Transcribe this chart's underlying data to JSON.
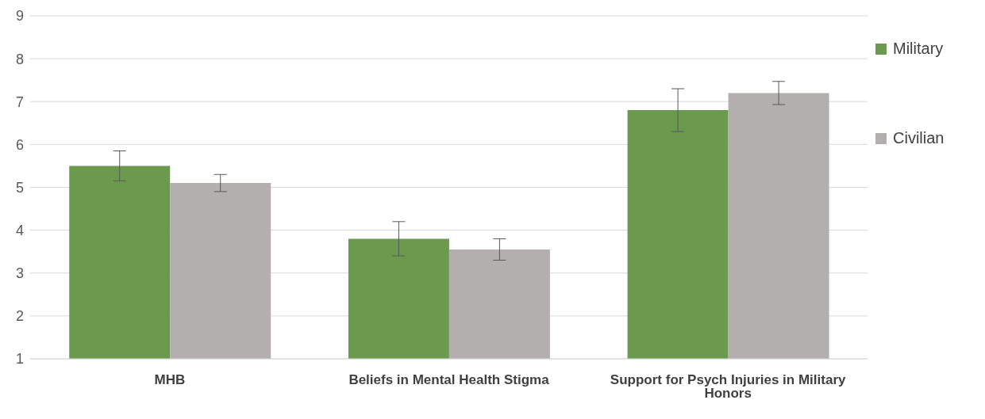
{
  "chart_data": {
    "type": "bar",
    "categories": [
      "MHB",
      "Beliefs in Mental Health Stigma",
      "Support for Psych Injuries in Military Honors"
    ],
    "series": [
      {
        "name": "Military",
        "color": "#6b9a4f",
        "values": [
          5.5,
          3.8,
          6.8
        ],
        "errors": [
          0.35,
          0.4,
          0.5
        ]
      },
      {
        "name": "Civilian",
        "color": "#b3afae",
        "values": [
          5.1,
          3.55,
          7.2
        ],
        "errors": [
          0.2,
          0.25,
          0.27
        ]
      }
    ],
    "ylim": [
      1,
      9
    ],
    "yticks": [
      1,
      2,
      3,
      4,
      5,
      6,
      7,
      8,
      9
    ],
    "grid": "y",
    "legend": "right"
  }
}
